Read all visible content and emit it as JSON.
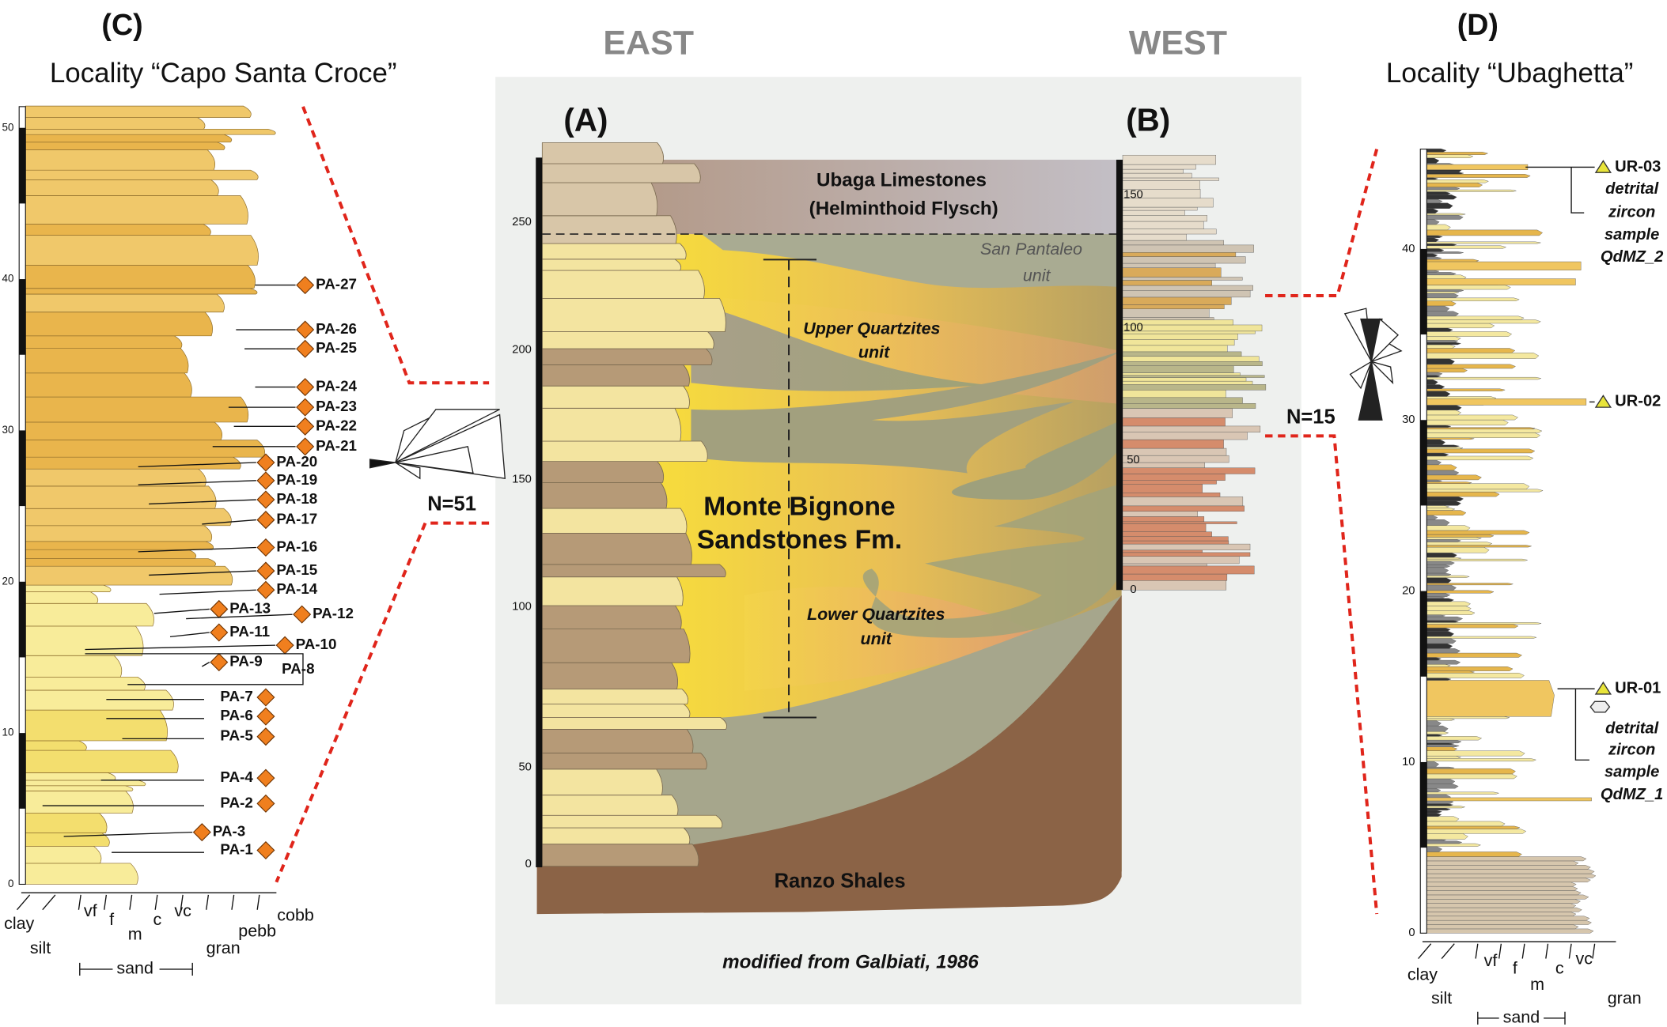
{
  "east_label": "EAST",
  "west_label": "WEST",
  "panel_c": {
    "letter": "(C)",
    "title": "Locality “Capo Santa Croce”",
    "ticks": [
      0,
      10,
      20,
      30,
      40,
      50
    ],
    "samples": [
      "PA-27",
      "PA-26",
      "PA-25",
      "PA-24",
      "PA-23",
      "PA-22",
      "PA-21",
      "PA-20",
      "PA-19",
      "PA-18",
      "PA-17",
      "PA-16",
      "PA-15",
      "PA-14",
      "PA-13",
      "PA-12",
      "PA-11",
      "PA-10",
      "PA-9",
      "PA-8",
      "PA-7",
      "PA-6",
      "PA-5",
      "PA-4",
      "PA-2",
      "PA-3",
      "PA-1"
    ],
    "rose_n": "N=51",
    "grain_sizes": [
      "clay",
      "silt",
      "vf",
      "f",
      "m",
      "c",
      "vc",
      "gran",
      "pebb",
      "cobb"
    ],
    "sand": "sand"
  },
  "panel_a": {
    "letter": "(A)",
    "ticks": [
      0,
      50,
      100,
      150,
      200,
      250
    ],
    "units": [
      "Ubaga Limestones",
      "(Helminthoid Flysch)",
      "San Pantaleo",
      "unit",
      "Upper Quartzites",
      "unit",
      "Monte Bignone",
      "Sandstones Fm.",
      "Lower Quartzites",
      "unit",
      "Ranzo Shales"
    ],
    "credit": "modified from Galbiati, 1986"
  },
  "panel_b": {
    "letter": "(B)",
    "ticks": [
      0,
      50,
      100,
      150
    ],
    "rose_n": "N=15"
  },
  "panel_d": {
    "letter": "(D)",
    "title": "Locality  “Ubaghetta”",
    "ticks": [
      0,
      10,
      20,
      30,
      40
    ],
    "samples": [
      "UR-03",
      "UR-02",
      "UR-01"
    ],
    "notes": [
      [
        "detrital",
        "zircon",
        "sample",
        "QdMZ_2"
      ],
      [
        "detrital",
        "zircon",
        "sample",
        "QdMZ_1"
      ]
    ],
    "grain_sizes": [
      "clay",
      "silt",
      "vf",
      "f",
      "m",
      "c",
      "vc",
      "gran"
    ],
    "sand": "sand"
  }
}
